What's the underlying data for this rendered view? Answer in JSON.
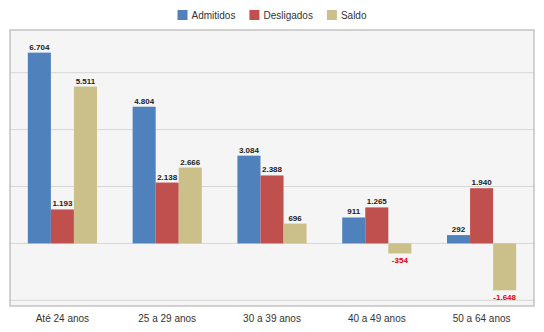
{
  "chart_data": {
    "type": "bar",
    "categories": [
      "Até 24 anos",
      "25 a 29 anos",
      "30 a 39 anos",
      "40 a 49 anos",
      "50 a 64 anos"
    ],
    "series": [
      {
        "name": "Admitidos",
        "color": "#4F81BD",
        "values": [
          6704,
          4804,
          3084,
          911,
          292
        ],
        "value_labels": [
          "6.704",
          "4.804",
          "3.084",
          "911",
          "292"
        ]
      },
      {
        "name": "Desligados",
        "color": "#C0504D",
        "values": [
          1193,
          2138,
          2388,
          1265,
          1940
        ],
        "value_labels": [
          "1.193",
          "2.138",
          "2.388",
          "1.265",
          "1.940"
        ]
      },
      {
        "name": "Saldo",
        "color": "#CCC08A",
        "values": [
          5511,
          2666,
          696,
          -354,
          -1648
        ],
        "value_labels": [
          "5.511",
          "2.666",
          "696",
          "-354",
          "-1.648"
        ]
      }
    ],
    "ylim": [
      -2200,
      7500
    ],
    "yticks": [
      -2000,
      0,
      2000,
      4000,
      6000
    ],
    "grid": true,
    "legend": "top",
    "data_labels": true,
    "tick_labels": "x"
  }
}
